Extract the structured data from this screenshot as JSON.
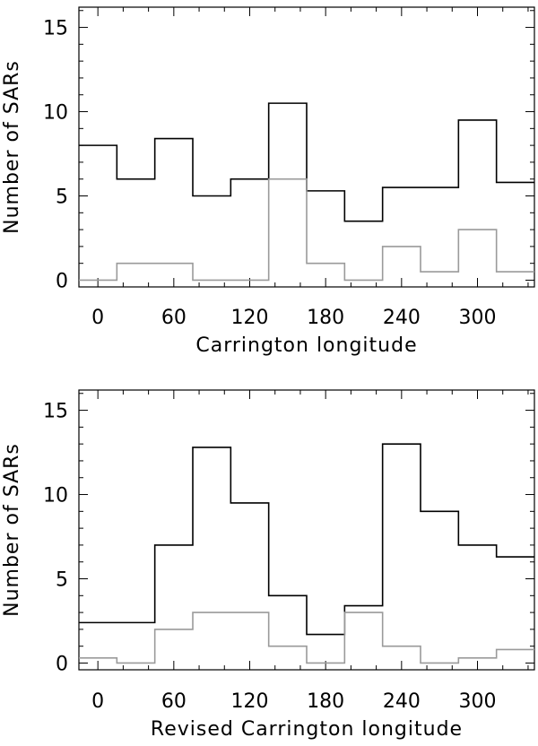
{
  "chart_data": [
    {
      "type": "histogram",
      "xlabel": "Carrington longitude",
      "ylabel": "Number of SARs",
      "xlim": [
        -15,
        345
      ],
      "ylim": [
        -0.4,
        16.2
      ],
      "x_ticks": [
        0,
        60,
        120,
        180,
        240,
        300
      ],
      "x_tick_labels": [
        "0",
        "60",
        "120",
        "180",
        "240",
        "300"
      ],
      "y_ticks": [
        0,
        5,
        10,
        15
      ],
      "y_tick_labels": [
        "0",
        "5",
        "10",
        "15"
      ],
      "bin_edges": [
        -15,
        15,
        45,
        75,
        105,
        135,
        165,
        195,
        225,
        255,
        285,
        315,
        345
      ],
      "series": [
        {
          "values": [
            8.0,
            6.0,
            8.4,
            5.0,
            6.0,
            10.5,
            5.3,
            3.5,
            5.5,
            5.5,
            9.5,
            5.8
          ],
          "color": "#000000"
        },
        {
          "values": [
            0,
            1.0,
            1.0,
            0,
            0,
            6.0,
            1.0,
            0,
            2.0,
            0.5,
            3.0,
            0.5
          ],
          "color": "#9a9a9a"
        }
      ],
      "grid": false
    },
    {
      "type": "histogram",
      "xlabel": "Revised Carrington longitude",
      "ylabel": "Number of SARs",
      "xlim": [
        -15,
        345
      ],
      "ylim": [
        -0.4,
        16.2
      ],
      "x_ticks": [
        0,
        60,
        120,
        180,
        240,
        300
      ],
      "x_tick_labels": [
        "0",
        "60",
        "120",
        "180",
        "240",
        "300"
      ],
      "y_ticks": [
        0,
        5,
        10,
        15
      ],
      "y_tick_labels": [
        "0",
        "5",
        "10",
        "15"
      ],
      "bin_edges": [
        -15,
        15,
        45,
        75,
        105,
        135,
        165,
        195,
        225,
        255,
        285,
        315,
        345
      ],
      "series": [
        {
          "values": [
            2.4,
            2.4,
            7.0,
            12.8,
            9.5,
            4.0,
            1.7,
            3.4,
            13.0,
            9.0,
            7.0,
            6.3
          ],
          "color": "#000000"
        },
        {
          "values": [
            0.3,
            0,
            2.0,
            3.0,
            3.0,
            1.0,
            0,
            3.0,
            1.0,
            0,
            0.3,
            0.8
          ],
          "color": "#9a9a9a"
        }
      ],
      "grid": false
    }
  ]
}
